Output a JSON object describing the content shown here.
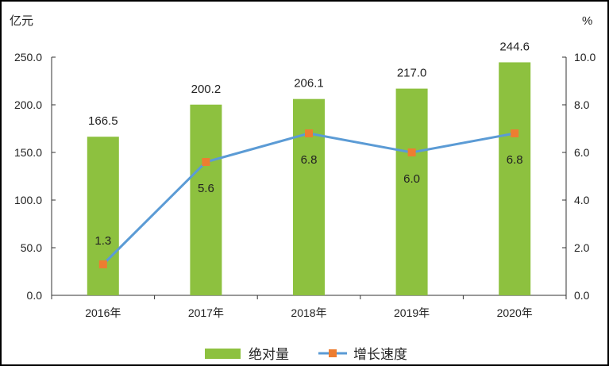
{
  "chart_data": {
    "type": "bar+line",
    "categories": [
      "2016年",
      "2017年",
      "2018年",
      "2019年",
      "2020年"
    ],
    "series": [
      {
        "name": "绝对量",
        "type": "bar",
        "axis": "left",
        "values": [
          166.5,
          200.2,
          206.1,
          217.0,
          244.6
        ],
        "labels": [
          "166.5",
          "200.2",
          "206.1",
          "217.0",
          "244.6"
        ],
        "color": "#8dc13f"
      },
      {
        "name": "增长速度",
        "type": "line",
        "axis": "right",
        "values": [
          1.3,
          5.6,
          6.8,
          6.0,
          6.8
        ],
        "labels": [
          "1.3",
          "5.6",
          "6.8",
          "6.0",
          "6.8"
        ],
        "color": "#5b9bd5",
        "marker_color": "#ed7d31"
      }
    ],
    "left_axis": {
      "unit": "亿元",
      "ylim": [
        0,
        250
      ],
      "ticks": [
        "0.0",
        "50.0",
        "100.0",
        "150.0",
        "200.0",
        "250.0"
      ]
    },
    "right_axis": {
      "unit": "%",
      "ylim": [
        0,
        10
      ],
      "ticks": [
        "0.0",
        "2.0",
        "4.0",
        "6.0",
        "8.0",
        "10.0"
      ]
    },
    "grid": false,
    "legend": "bottom"
  }
}
